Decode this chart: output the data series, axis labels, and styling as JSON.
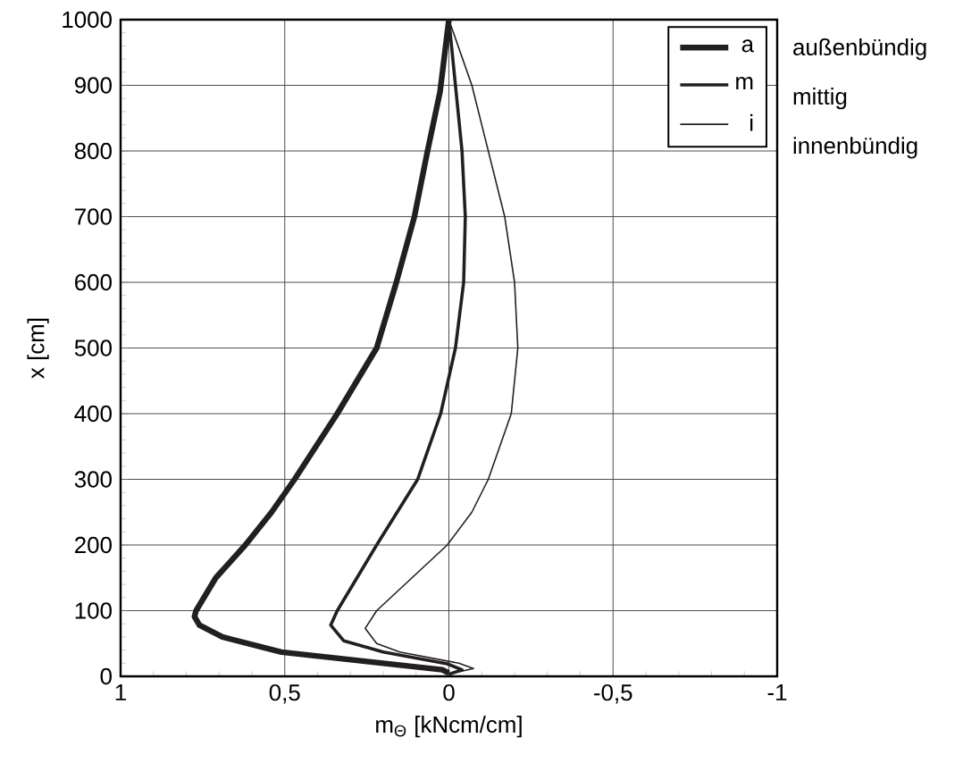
{
  "chart_data": {
    "type": "line",
    "xlabel": "m$_{Θ}$  [kNcm/cm]",
    "ylabel": "x  [cm]",
    "xlim": [
      1,
      -1
    ],
    "ylim": [
      0,
      1000
    ],
    "xticks": [
      1,
      {
        "value": 0.5,
        "label": "0,5"
      },
      0,
      {
        "value": -0.5,
        "label": "-0,5"
      },
      -1
    ],
    "yticks": [
      0,
      100,
      200,
      300,
      400,
      500,
      600,
      700,
      800,
      900,
      1000
    ],
    "grid": true,
    "legend": "top right",
    "marker": "none",
    "line_style": "solid",
    "series": [
      {
        "name": "a",
        "color": "#231f20",
        "x": [
          0,
          0.02,
          0.2,
          0.51,
          0.69,
          0.76,
          0.775,
          0.77,
          0.71,
          0.62,
          0.54,
          0.47,
          0.34,
          0.22,
          0.16,
          0.105,
          0.065,
          0.027,
          0
        ],
        "values": [
          5,
          10,
          20,
          37,
          60,
          78,
          91,
          100,
          150,
          200,
          250,
          300,
          400,
          500,
          600,
          700,
          800,
          890,
          1000
        ]
      },
      {
        "name": "m",
        "color": "#231f20",
        "x": [
          0,
          -0.04,
          0.005,
          0.2,
          0.32,
          0.36,
          0.34,
          0.22,
          0.095,
          0.025,
          -0.02,
          -0.045,
          -0.05,
          -0.04,
          -0.022,
          0
        ],
        "values": [
          3,
          10,
          19,
          37,
          54,
          78,
          100,
          200,
          300,
          400,
          500,
          600,
          700,
          800,
          890,
          1000
        ]
      },
      {
        "name": "i",
        "color": "#231f20",
        "x": [
          -0.015,
          -0.075,
          -0.03,
          0.15,
          0.22,
          0.255,
          0.22,
          0.005,
          -0.07,
          -0.12,
          -0.19,
          -0.21,
          -0.2,
          -0.17,
          -0.115,
          -0.07,
          0
        ],
        "values": [
          5,
          12,
          20,
          37,
          50,
          73,
          100,
          200,
          250,
          300,
          400,
          500,
          600,
          700,
          810,
          900,
          1000
        ]
      }
    ],
    "annotations": [
      "außenbündig",
      "mittig",
      "innenbündig"
    ]
  }
}
